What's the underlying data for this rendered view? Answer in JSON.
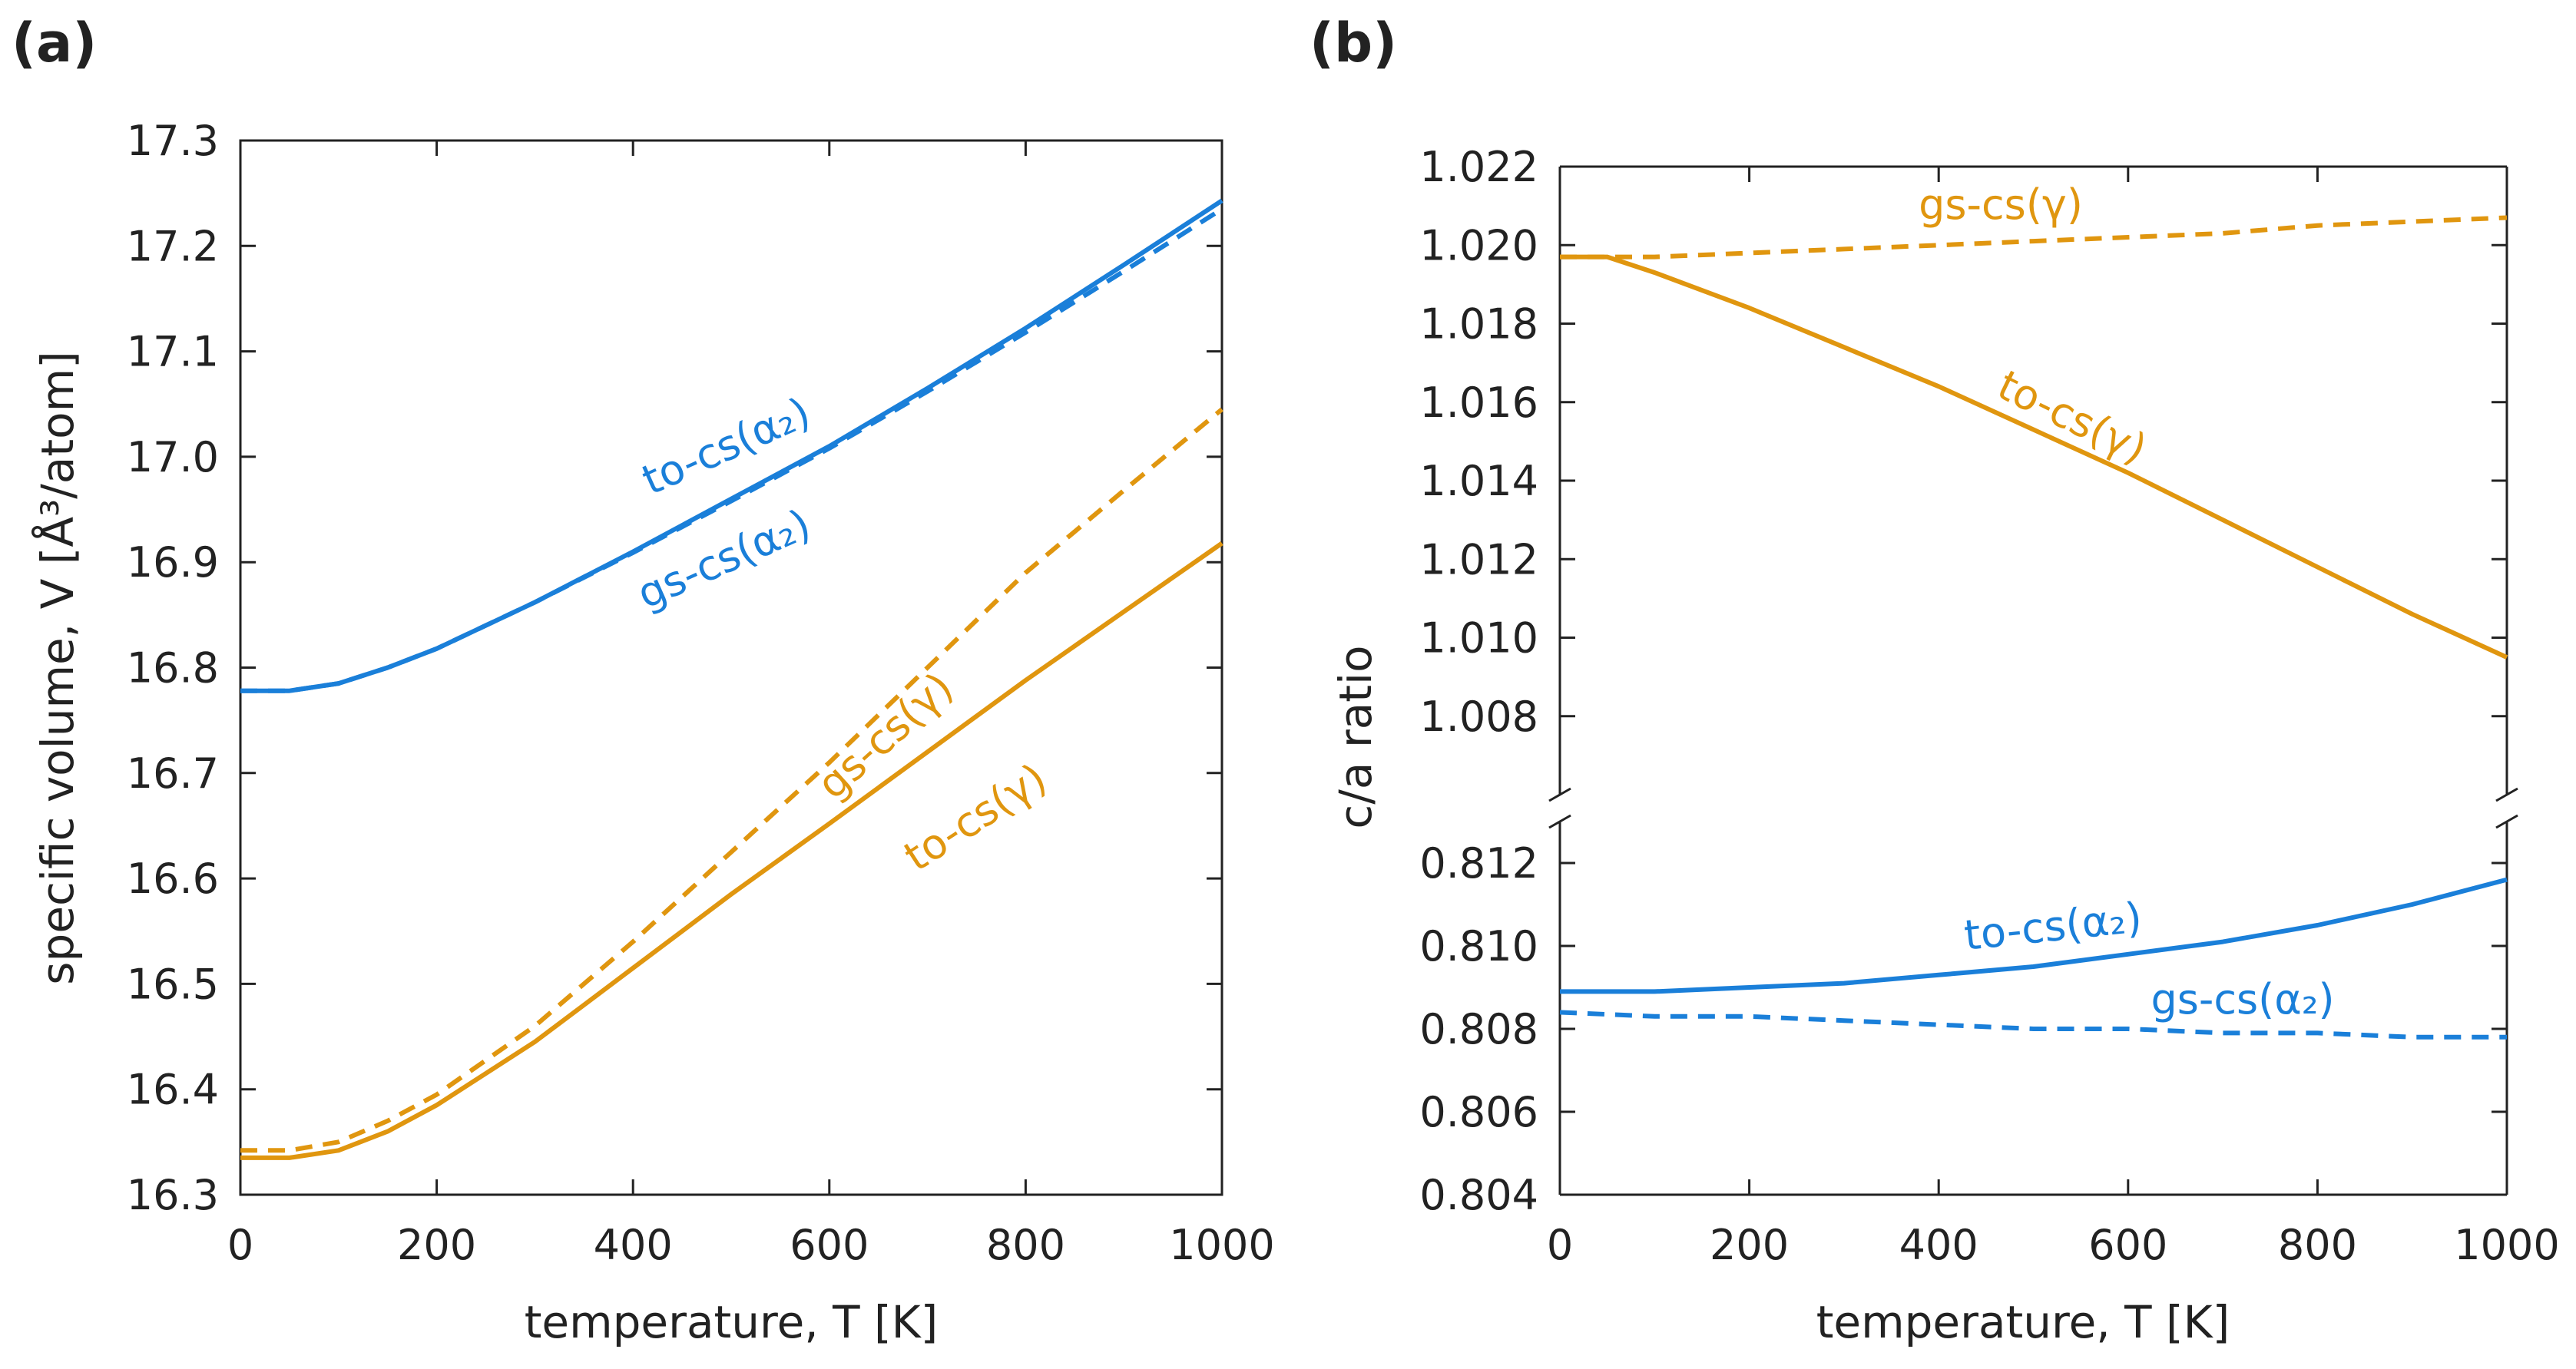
{
  "colors": {
    "blue": "#1a7fd9",
    "orange": "#e0960f",
    "axis": "#222222"
  },
  "chart_data": [
    {
      "panel": "(a)",
      "type": "line",
      "xlabel": "temperature, T  [K]",
      "ylabel": "specific volume, V  [Å³/atom]",
      "xlim": [
        0,
        1000
      ],
      "ylim": [
        16.3,
        17.3
      ],
      "xticks": [
        "0",
        "200",
        "400",
        "600",
        "800",
        "1000"
      ],
      "yticks": [
        "16.3",
        "16.4",
        "16.5",
        "16.6",
        "16.7",
        "16.8",
        "16.9",
        "17.0",
        "17.1",
        "17.2",
        "17.3"
      ],
      "series": [
        {
          "name": "to-cs(α₂)",
          "style": "solid",
          "color": "blue",
          "x": [
            0,
            50,
            100,
            150,
            200,
            300,
            400,
            500,
            600,
            700,
            800,
            900,
            1000
          ],
          "y": [
            16.778,
            16.778,
            16.785,
            16.8,
            16.818,
            16.862,
            16.91,
            16.96,
            17.01,
            17.065,
            17.122,
            17.182,
            17.243
          ]
        },
        {
          "name": "gs-cs(α₂)",
          "style": "dashed",
          "color": "blue",
          "x": [
            0,
            50,
            100,
            150,
            200,
            300,
            400,
            500,
            600,
            700,
            800,
            900,
            1000
          ],
          "y": [
            16.778,
            16.778,
            16.785,
            16.8,
            16.818,
            16.862,
            16.909,
            16.958,
            17.008,
            17.062,
            17.118,
            17.176,
            17.235
          ]
        },
        {
          "name": "gs-cs(γ)",
          "style": "dashed",
          "color": "orange",
          "x": [
            0,
            50,
            100,
            150,
            200,
            300,
            400,
            500,
            600,
            700,
            800,
            900,
            1000
          ],
          "y": [
            16.342,
            16.342,
            16.35,
            16.37,
            16.395,
            16.46,
            16.54,
            16.625,
            16.71,
            16.8,
            16.89,
            16.968,
            17.045
          ]
        },
        {
          "name": "to-cs(γ)",
          "style": "solid",
          "color": "orange",
          "x": [
            0,
            50,
            100,
            150,
            200,
            300,
            400,
            500,
            600,
            700,
            800,
            900,
            1000
          ],
          "y": [
            16.335,
            16.335,
            16.342,
            16.36,
            16.385,
            16.445,
            16.515,
            16.585,
            16.652,
            16.72,
            16.788,
            16.853,
            16.918
          ]
        }
      ],
      "annotations": [
        "to-cs(α₂)",
        "gs-cs(α₂)",
        "gs-cs(γ)",
        "to-cs(γ)"
      ]
    },
    {
      "panel": "(b)",
      "type": "line",
      "xlabel": "temperature, T  [K]",
      "ylabel": "c/a ratio",
      "xlim": [
        0,
        1000
      ],
      "broken_axis": true,
      "upper_ylim": [
        1.006,
        1.022
      ],
      "lower_ylim": [
        0.804,
        0.813
      ],
      "xticks": [
        "0",
        "200",
        "400",
        "600",
        "800",
        "1000"
      ],
      "upper_yticks": [
        "1.008",
        "1.010",
        "1.012",
        "1.014",
        "1.016",
        "1.018",
        "1.020",
        "1.022"
      ],
      "lower_yticks": [
        "0.804",
        "0.806",
        "0.808",
        "0.810",
        "0.812"
      ],
      "series": [
        {
          "name": "gs-cs(γ)",
          "style": "dashed",
          "color": "orange",
          "segment": "upper",
          "x": [
            0,
            100,
            200,
            300,
            400,
            500,
            600,
            700,
            800,
            900,
            1000
          ],
          "y": [
            1.0197,
            1.0197,
            1.0198,
            1.0199,
            1.02,
            1.0201,
            1.0202,
            1.0203,
            1.0205,
            1.0206,
            1.0207
          ]
        },
        {
          "name": "to-cs(γ)",
          "style": "solid",
          "color": "orange",
          "segment": "upper",
          "x": [
            0,
            50,
            100,
            200,
            300,
            400,
            500,
            600,
            700,
            800,
            900,
            1000
          ],
          "y": [
            1.0197,
            1.0197,
            1.0193,
            1.0184,
            1.0174,
            1.0164,
            1.0153,
            1.0142,
            1.013,
            1.0118,
            1.0106,
            1.0095
          ]
        },
        {
          "name": "to-cs(α₂)",
          "style": "solid",
          "color": "blue",
          "segment": "lower",
          "x": [
            0,
            100,
            200,
            300,
            400,
            500,
            600,
            700,
            800,
            900,
            1000
          ],
          "y": [
            0.8089,
            0.8089,
            0.809,
            0.8091,
            0.8093,
            0.8095,
            0.8098,
            0.8101,
            0.8105,
            0.811,
            0.8116
          ]
        },
        {
          "name": "gs-cs(α₂)",
          "style": "dashed",
          "color": "blue",
          "segment": "lower",
          "x": [
            0,
            100,
            200,
            300,
            400,
            500,
            600,
            700,
            800,
            900,
            1000
          ],
          "y": [
            0.8084,
            0.8083,
            0.8083,
            0.8082,
            0.8081,
            0.808,
            0.808,
            0.8079,
            0.8079,
            0.8078,
            0.8078
          ]
        }
      ],
      "annotations": [
        "gs-cs(γ)",
        "to-cs(γ)",
        "to-cs(α₂)",
        "gs-cs(α₂)"
      ]
    }
  ]
}
